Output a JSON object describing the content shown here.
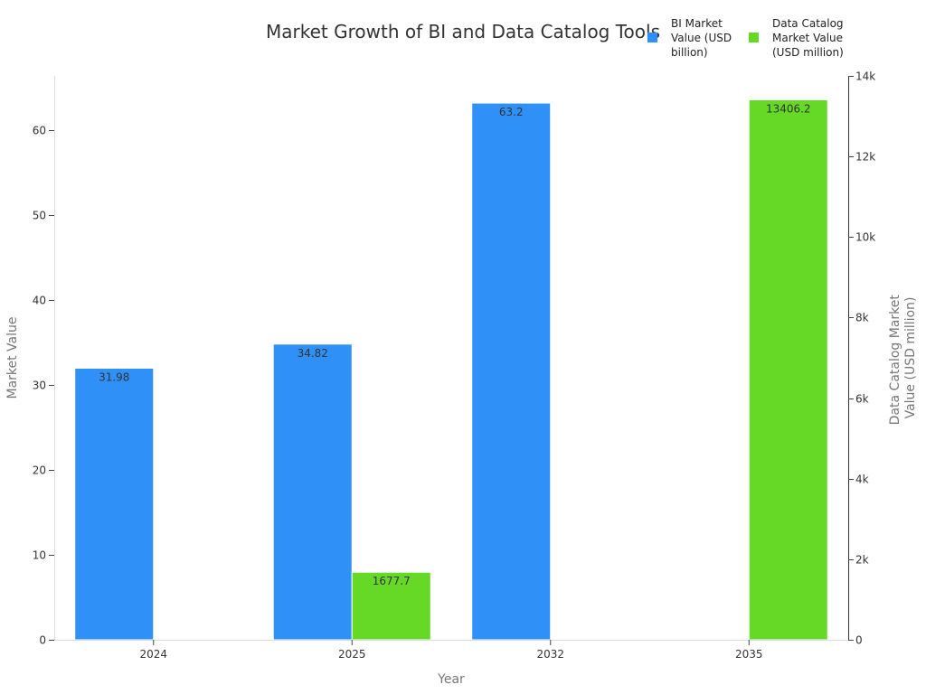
{
  "chart_data": {
    "type": "bar",
    "title": "Market Growth of BI and Data Catalog Tools",
    "xlabel": "Year",
    "ylabel": "Market Value",
    "y2label": "Data Catalog Market Value (USD million)",
    "categories": [
      "2024",
      "2025",
      "2032",
      "2035"
    ],
    "series": [
      {
        "name": "BI Market Value (USD billion)",
        "axis": "left",
        "color": "#2f91f8",
        "values": [
          31.98,
          34.82,
          63.2,
          null
        ]
      },
      {
        "name": "Data Catalog Market Value (USD million)",
        "axis": "right",
        "color": "#66d926",
        "values": [
          null,
          1677.7,
          null,
          13406.2
        ]
      }
    ],
    "ylim": [
      0,
      66.4
    ],
    "y2lim": [
      0,
      14000
    ],
    "yticks": [
      0,
      10,
      20,
      30,
      40,
      50,
      60
    ],
    "y2ticks": [
      0,
      2000,
      4000,
      6000,
      8000,
      10000,
      12000,
      14000
    ],
    "y2ticklabels": [
      "0",
      "2k",
      "4k",
      "6k",
      "8k",
      "10k",
      "12k",
      "14k"
    ],
    "legend_position": "top-right",
    "grid": false
  }
}
